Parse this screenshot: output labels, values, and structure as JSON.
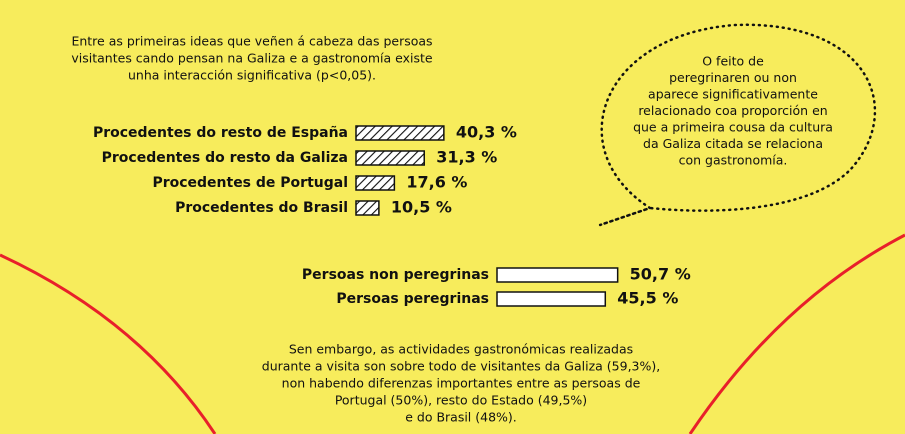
{
  "intro": [
    "Entre as primeiras ideas que veñen á cabeza das persoas",
    "visitantes cando pensan na Galiza e a gastronomía existe",
    "unha interacción significativa (p<0,05)."
  ],
  "callout": [
    "O feito de",
    "peregrinaren ou non",
    "aparece significativamente",
    "relacionado coa proporción en",
    "que a primeira cousa da cultura",
    "da Galiza citada se relaciona",
    "con gastronomía."
  ],
  "footer": [
    "Sen embargo, as actividades gastronómicas realizadas",
    "durante a visita son sobre todo de visitantes da Galiza (59,3%),",
    "non habendo diferenzas importantes entre as persoas de",
    "Portugal (50%), resto do Estado (49,5%)",
    "e do Brasil (48%)."
  ],
  "chart_data": [
    {
      "type": "hbar",
      "fill": "hatched",
      "categories": [
        "Procedentes do resto de España",
        "Procedentes do resto da Galiza",
        "Procedentes de Portugal",
        "Procedentes do Brasil"
      ],
      "values": [
        40.3,
        31.3,
        17.6,
        10.5
      ],
      "value_labels": [
        "40,3 %",
        "31,3 %",
        "17,6 %",
        "10,5 %"
      ]
    },
    {
      "type": "hbar",
      "fill": "#ffffff",
      "categories": [
        "Persoas non peregrinas",
        "Persoas peregrinas"
      ],
      "values": [
        50.7,
        45.5
      ],
      "value_labels": [
        "50,7 %",
        "45,5 %"
      ]
    }
  ]
}
